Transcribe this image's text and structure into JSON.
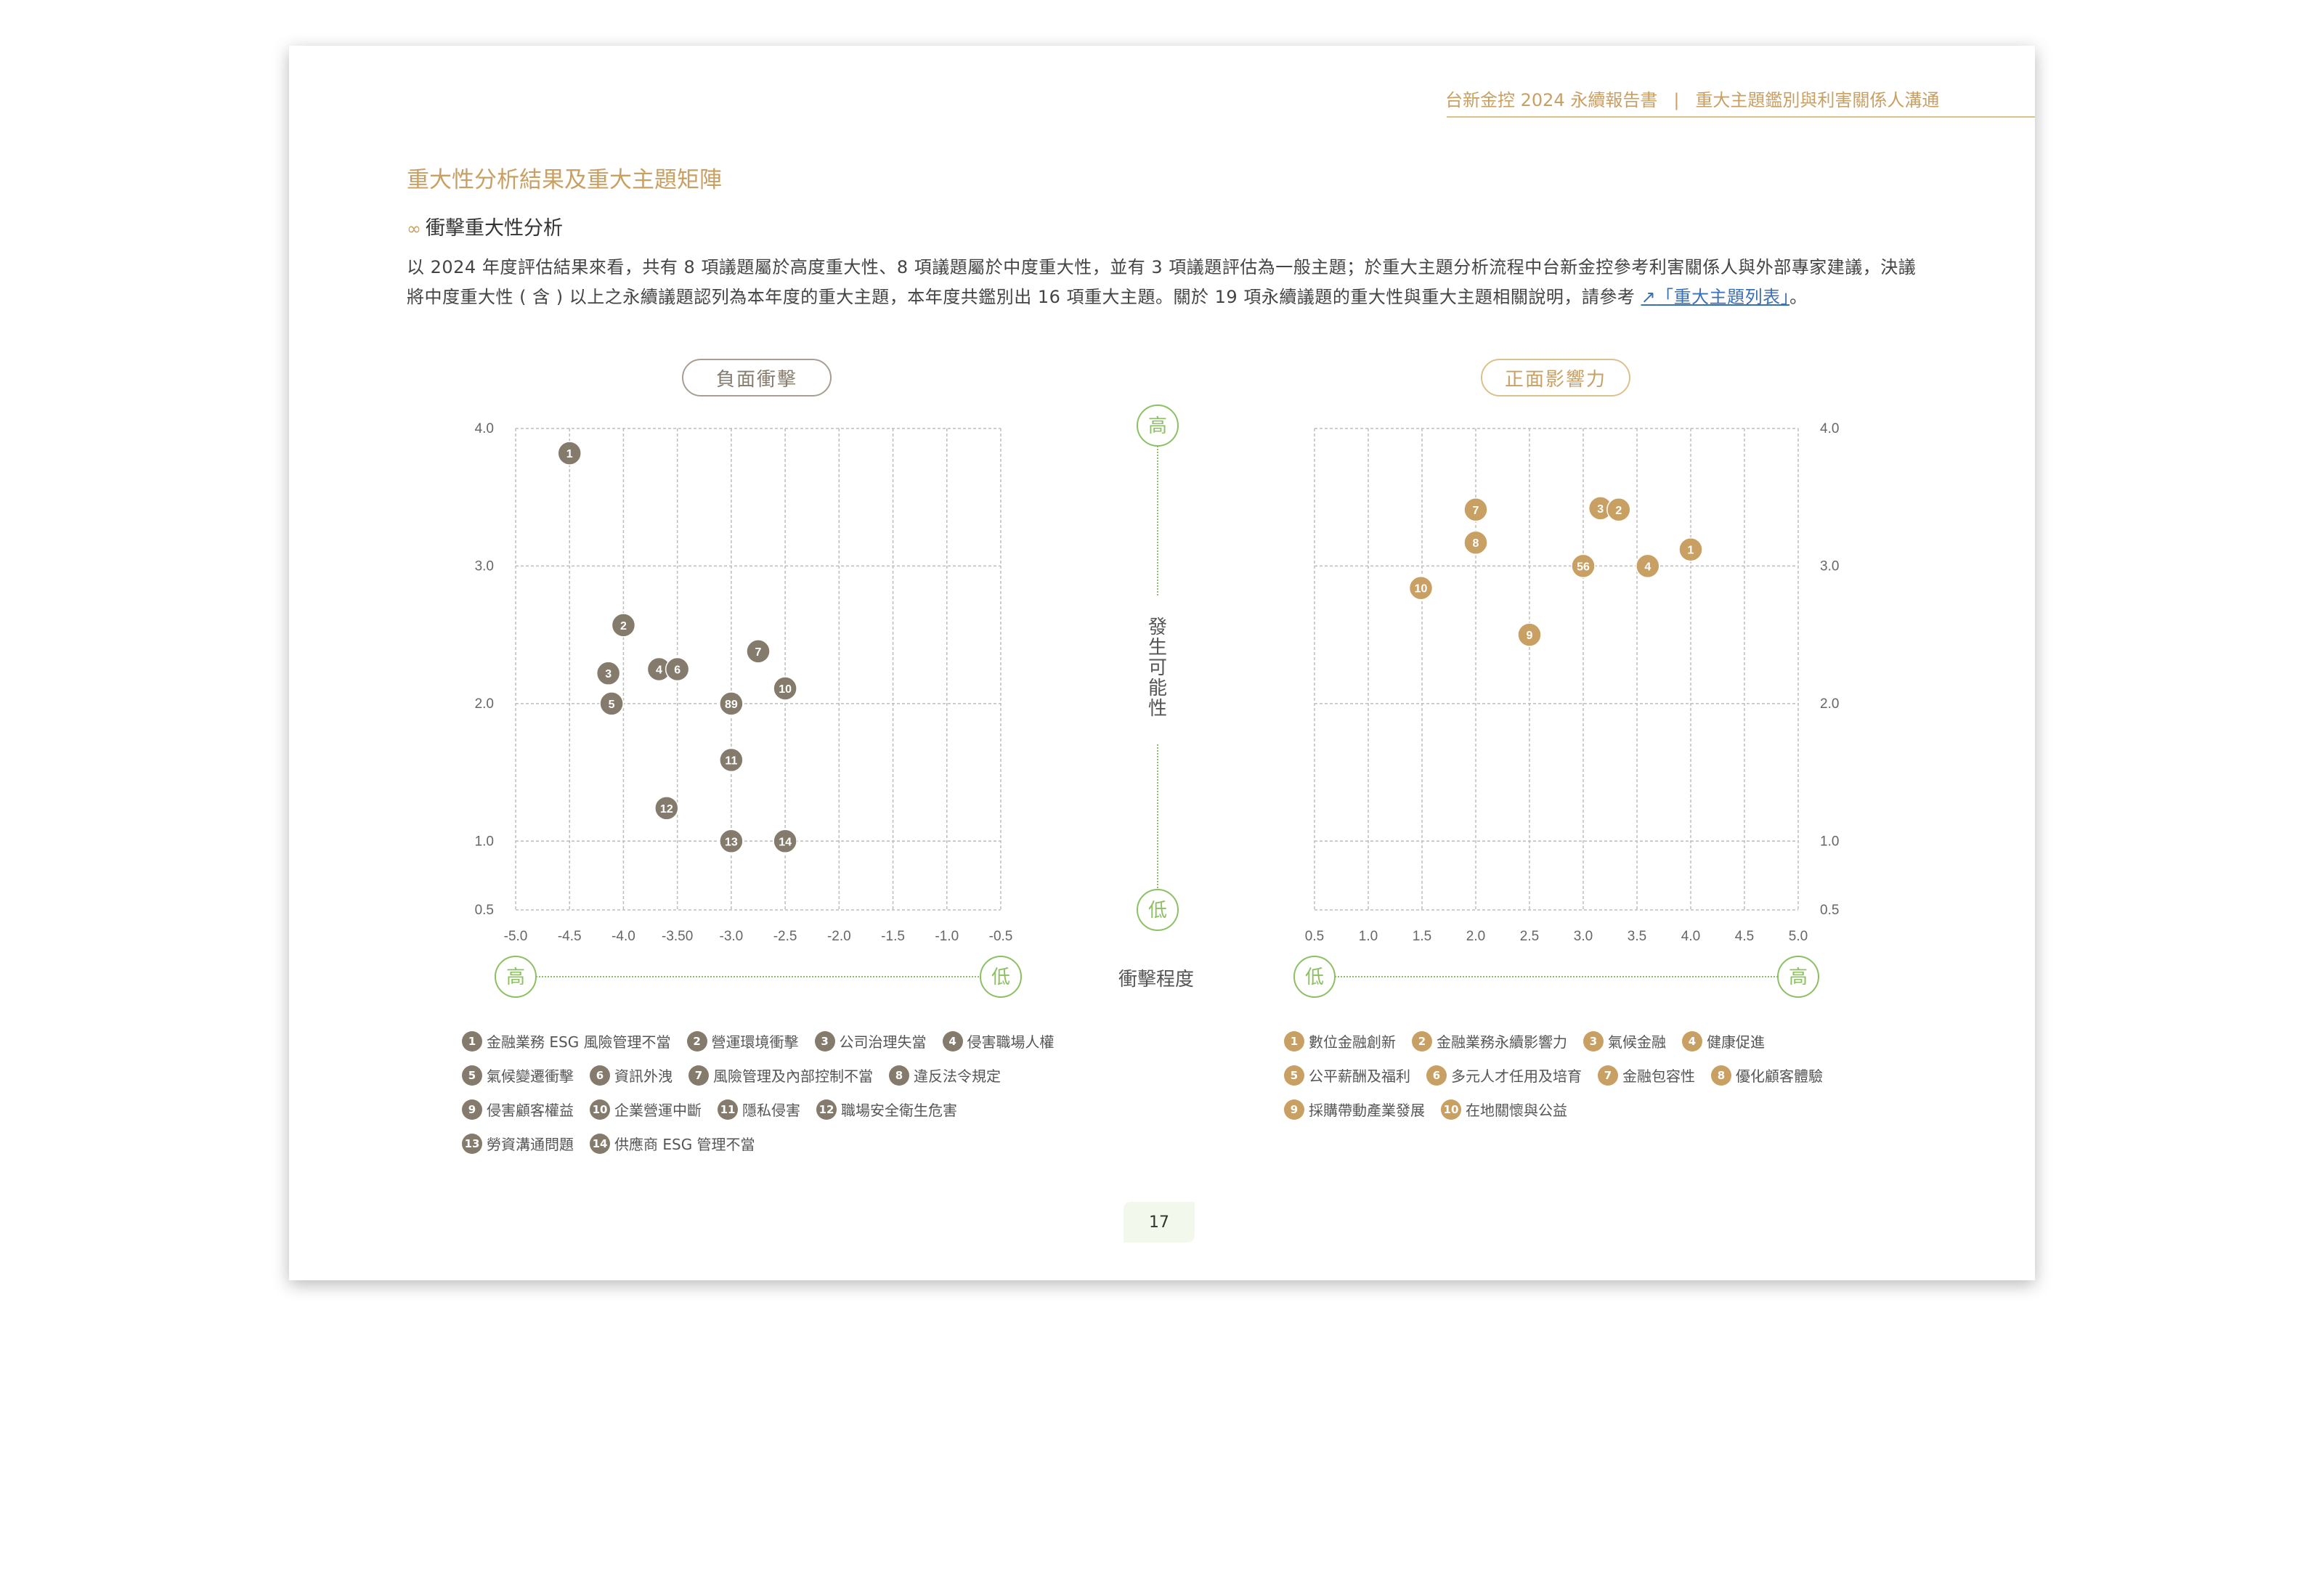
{
  "header": {
    "report": "台新金控 2024 永續報告書",
    "separator": "|",
    "section": "重大主題鑑別與利害關係人溝通"
  },
  "title": "重大性分析結果及重大主題矩陣",
  "subtitle": {
    "icon": "infinity-icon",
    "glyph": "∞",
    "text": "衝擊重大性分析"
  },
  "paragraph": {
    "text": "以 2024 年度評估結果來看，共有 8 項議題屬於高度重大性、8 項議題屬於中度重大性，並有 3 項議題評估為一般主題；於重大主題分析流程中台新金控參考利害關係人與外部專家建議，決議將中度重大性 ( 含 ) 以上之永續議題認列為本年度的重大主題，本年度共鑑別出 16 項重大主題。關於 19 項永續議題的重大性與重大主題相關說明，請參考 ",
    "link_icon": "↗",
    "link_text": "「重大主題列表」",
    "tail": "。"
  },
  "middle_axis": {
    "high": "高",
    "low": "低",
    "likelihood_label": "發生可能性",
    "impact_label": "衝擊程度"
  },
  "colors": {
    "negative": "#857b6c",
    "positive": "#c9a063",
    "accent_green": "#8cc063",
    "gold": "#c9a063"
  },
  "chart_data": [
    {
      "type": "scatter",
      "title": "負面衝擊",
      "xlim": [
        -5.0,
        -0.5
      ],
      "ylim": [
        0.5,
        4.0
      ],
      "x_ticks": [
        "-5.0",
        "-4.5",
        "-4.0",
        "-3.50",
        "-3.0",
        "-2.5",
        "-2.0",
        "-1.5",
        "-1.0",
        "-0.5"
      ],
      "y_ticks": [
        "4.0",
        "3.0",
        "2.0",
        "1.0",
        "0.5"
      ],
      "y_axis_side": "left",
      "grid": true,
      "x_end_labels": {
        "left": "高",
        "right": "低"
      },
      "points": [
        {
          "label": "1",
          "x": -4.5,
          "y": 3.82
        },
        {
          "label": "2",
          "x": -4.0,
          "y": 2.57
        },
        {
          "label": "3",
          "x": -4.14,
          "y": 2.22
        },
        {
          "label": "4",
          "x": -3.67,
          "y": 2.25
        },
        {
          "label": "6",
          "x": -3.5,
          "y": 2.25
        },
        {
          "label": "5",
          "x": -4.11,
          "y": 2.0
        },
        {
          "label": "7",
          "x": -2.75,
          "y": 2.38
        },
        {
          "label": "10",
          "x": -2.5,
          "y": 2.11
        },
        {
          "label": "89",
          "x": -3.0,
          "y": 2.0
        },
        {
          "label": "11",
          "x": -3.0,
          "y": 1.59
        },
        {
          "label": "12",
          "x": -3.6,
          "y": 1.24
        },
        {
          "label": "13",
          "x": -3.0,
          "y": 1.0
        },
        {
          "label": "14",
          "x": -2.5,
          "y": 1.0
        }
      ],
      "legend": [
        {
          "num": "1",
          "text": "金融業務 ESG 風險管理不當"
        },
        {
          "num": "2",
          "text": "營運環境衝擊"
        },
        {
          "num": "3",
          "text": "公司治理失當"
        },
        {
          "num": "4",
          "text": "侵害職場人權"
        },
        {
          "num": "5",
          "text": "氣候變遷衝擊"
        },
        {
          "num": "6",
          "text": "資訊外洩"
        },
        {
          "num": "7",
          "text": "風險管理及內部控制不當"
        },
        {
          "num": "8",
          "text": "違反法令規定"
        },
        {
          "num": "9",
          "text": "侵害顧客權益"
        },
        {
          "num": "10",
          "text": "企業營運中斷"
        },
        {
          "num": "11",
          "text": "隱私侵害"
        },
        {
          "num": "12",
          "text": "職場安全衛生危害"
        },
        {
          "num": "13",
          "text": "勞資溝通問題"
        },
        {
          "num": "14",
          "text": "供應商 ESG 管理不當"
        }
      ]
    },
    {
      "type": "scatter",
      "title": "正面影響力",
      "xlim": [
        0.5,
        5.0
      ],
      "ylim": [
        0.5,
        4.0
      ],
      "x_ticks": [
        "0.5",
        "1.0",
        "1.5",
        "2.0",
        "2.5",
        "3.0",
        "3.5",
        "4.0",
        "4.5",
        "5.0"
      ],
      "y_ticks": [
        "4.0",
        "3.0",
        "2.0",
        "1.0",
        "0.5"
      ],
      "y_axis_side": "right",
      "grid": true,
      "x_end_labels": {
        "left": "低",
        "right": "高"
      },
      "points": [
        {
          "label": "7",
          "x": 2.0,
          "y": 3.41
        },
        {
          "label": "8",
          "x": 2.0,
          "y": 3.17
        },
        {
          "label": "3",
          "x": 3.16,
          "y": 3.42
        },
        {
          "label": "2",
          "x": 3.33,
          "y": 3.41
        },
        {
          "label": "1",
          "x": 4.0,
          "y": 3.12
        },
        {
          "label": "56",
          "x": 3.0,
          "y": 3.0
        },
        {
          "label": "4",
          "x": 3.6,
          "y": 3.0
        },
        {
          "label": "10",
          "x": 1.49,
          "y": 2.84
        },
        {
          "label": "9",
          "x": 2.5,
          "y": 2.5
        }
      ],
      "legend": [
        {
          "num": "1",
          "text": "數位金融創新"
        },
        {
          "num": "2",
          "text": "金融業務永續影響力"
        },
        {
          "num": "3",
          "text": "氣候金融"
        },
        {
          "num": "4",
          "text": "健康促進"
        },
        {
          "num": "5",
          "text": "公平薪酬及福利"
        },
        {
          "num": "6",
          "text": "多元人才任用及培育"
        },
        {
          "num": "7",
          "text": "金融包容性"
        },
        {
          "num": "8",
          "text": "優化顧客體驗"
        },
        {
          "num": "9",
          "text": "採購帶動產業發展"
        },
        {
          "num": "10",
          "text": "在地關懷與公益"
        }
      ]
    }
  ],
  "page_number": "17"
}
